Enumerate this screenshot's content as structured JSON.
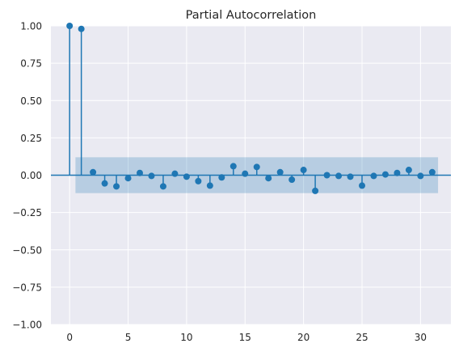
{
  "chart_data": {
    "type": "stem",
    "title": "Partial Autocorrelation",
    "xlabel": "",
    "ylabel": "",
    "xlim": [
      -1.6,
      32.6
    ],
    "ylim": [
      -1.0,
      1.0
    ],
    "x_ticks": [
      0,
      5,
      10,
      15,
      20,
      25,
      30
    ],
    "x_tick_labels": [
      "0",
      "5",
      "10",
      "15",
      "20",
      "25",
      "30"
    ],
    "y_ticks": [
      -1.0,
      -0.75,
      -0.5,
      -0.25,
      0.0,
      0.25,
      0.5,
      0.75,
      1.0
    ],
    "y_tick_labels": [
      "−1.00",
      "−0.75",
      "−0.50",
      "−0.25",
      "0.00",
      "0.25",
      "0.50",
      "0.75",
      "1.00"
    ],
    "grid": true,
    "confidence_band": {
      "x_start": 0.5,
      "x_end": 31.5,
      "upper": 0.12,
      "lower": -0.12
    },
    "lags": [
      0,
      1,
      2,
      3,
      4,
      5,
      6,
      7,
      8,
      9,
      10,
      11,
      12,
      13,
      14,
      15,
      16,
      17,
      18,
      19,
      20,
      21,
      22,
      23,
      24,
      25,
      26,
      27,
      28,
      29,
      30,
      31
    ],
    "values": [
      1.0,
      0.98,
      0.02,
      -0.055,
      -0.075,
      -0.02,
      0.015,
      -0.005,
      -0.075,
      0.01,
      -0.01,
      -0.04,
      -0.07,
      -0.015,
      0.06,
      0.01,
      0.055,
      -0.02,
      0.02,
      -0.03,
      0.035,
      -0.105,
      0.0,
      -0.005,
      -0.01,
      -0.07,
      -0.005,
      0.005,
      0.015,
      0.035,
      -0.005,
      0.02
    ],
    "colors": {
      "stem": "#1f77b4",
      "band": "#1f77b4",
      "plot_bg": "#eaeaf2",
      "grid": "#ffffff",
      "text": "#262626"
    }
  }
}
